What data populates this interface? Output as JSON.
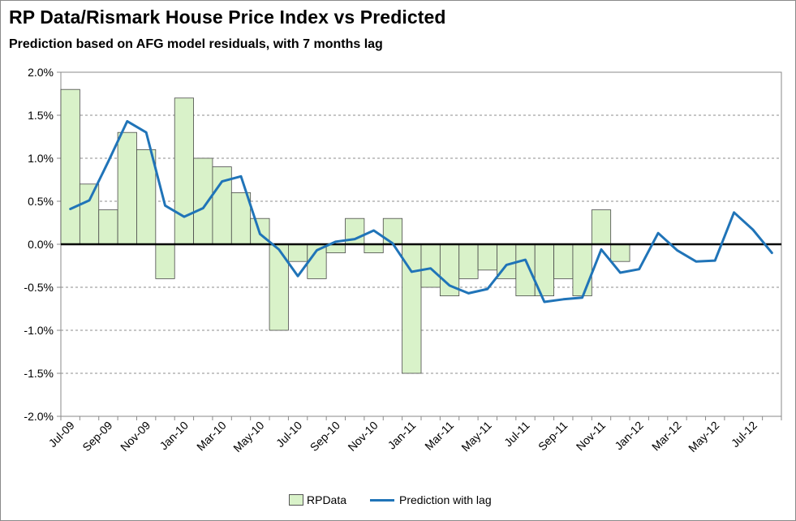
{
  "chart_data": {
    "type": "bar+line",
    "title": "RP Data/Rismark House Price Index vs Predicted",
    "subtitle": "Prediction based on AFG model residuals, with 7 months lag",
    "ylim": [
      -2.0,
      2.0
    ],
    "yticks": [
      "2.0%",
      "1.5%",
      "1.0%",
      "0.5%",
      "0.0%",
      "-0.5%",
      "-1.0%",
      "-1.5%",
      "-2.0%"
    ],
    "ytick_values": [
      2.0,
      1.5,
      1.0,
      0.5,
      0.0,
      -0.5,
      -1.0,
      -1.5,
      -2.0
    ],
    "grid": "horizontal dashed",
    "categories": [
      "Jul-09",
      "Aug-09",
      "Sep-09",
      "Oct-09",
      "Nov-09",
      "Dec-09",
      "Jan-10",
      "Feb-10",
      "Mar-10",
      "Apr-10",
      "May-10",
      "Jun-10",
      "Jul-10",
      "Aug-10",
      "Sep-10",
      "Oct-10",
      "Nov-10",
      "Dec-10",
      "Jan-11",
      "Feb-11",
      "Mar-11",
      "Apr-11",
      "May-11",
      "Jun-11",
      "Jul-11",
      "Aug-11",
      "Sep-11",
      "Oct-11",
      "Nov-11",
      "Dec-11",
      "Jan-12",
      "Feb-12",
      "Mar-12",
      "Apr-12",
      "May-12",
      "Jun-12",
      "Jul-12",
      "Aug-12"
    ],
    "xtick_labels": [
      "Jul-09",
      "Sep-09",
      "Nov-09",
      "Jan-10",
      "Mar-10",
      "May-10",
      "Jul-10",
      "Sep-10",
      "Nov-10",
      "Jan-11",
      "Mar-11",
      "May-11",
      "Jul-11",
      "Sep-11",
      "Nov-11",
      "Jan-12",
      "Mar-12",
      "May-12",
      "Jul-12"
    ],
    "series": [
      {
        "name": "RPData",
        "type": "bar",
        "color": "#d9f2c9",
        "values": [
          1.8,
          0.7,
          0.4,
          1.3,
          1.1,
          -0.4,
          1.7,
          1.0,
          0.9,
          0.6,
          0.3,
          -1.0,
          -0.2,
          -0.4,
          -0.1,
          0.3,
          -0.1,
          0.3,
          -1.5,
          -0.5,
          -0.6,
          -0.4,
          -0.3,
          -0.4,
          -0.6,
          -0.6,
          -0.4,
          -0.6,
          0.4,
          -0.2,
          null,
          null,
          null,
          null,
          null,
          null,
          null,
          null
        ]
      },
      {
        "name": "Prediction with lag",
        "type": "line",
        "color": "#2074b8",
        "values": [
          0.41,
          0.51,
          0.96,
          1.43,
          1.3,
          0.45,
          0.32,
          0.42,
          0.73,
          0.79,
          0.12,
          -0.06,
          -0.37,
          -0.07,
          0.03,
          0.06,
          0.16,
          0.01,
          -0.32,
          -0.28,
          -0.48,
          -0.57,
          -0.52,
          -0.24,
          -0.18,
          -0.67,
          -0.64,
          -0.62,
          -0.06,
          -0.33,
          -0.29,
          0.13,
          -0.07,
          -0.2,
          -0.19,
          0.37,
          0.17,
          -0.1
        ]
      }
    ],
    "legend": {
      "position": "bottom",
      "entries": [
        "RPData",
        "Prediction with lag"
      ]
    }
  }
}
